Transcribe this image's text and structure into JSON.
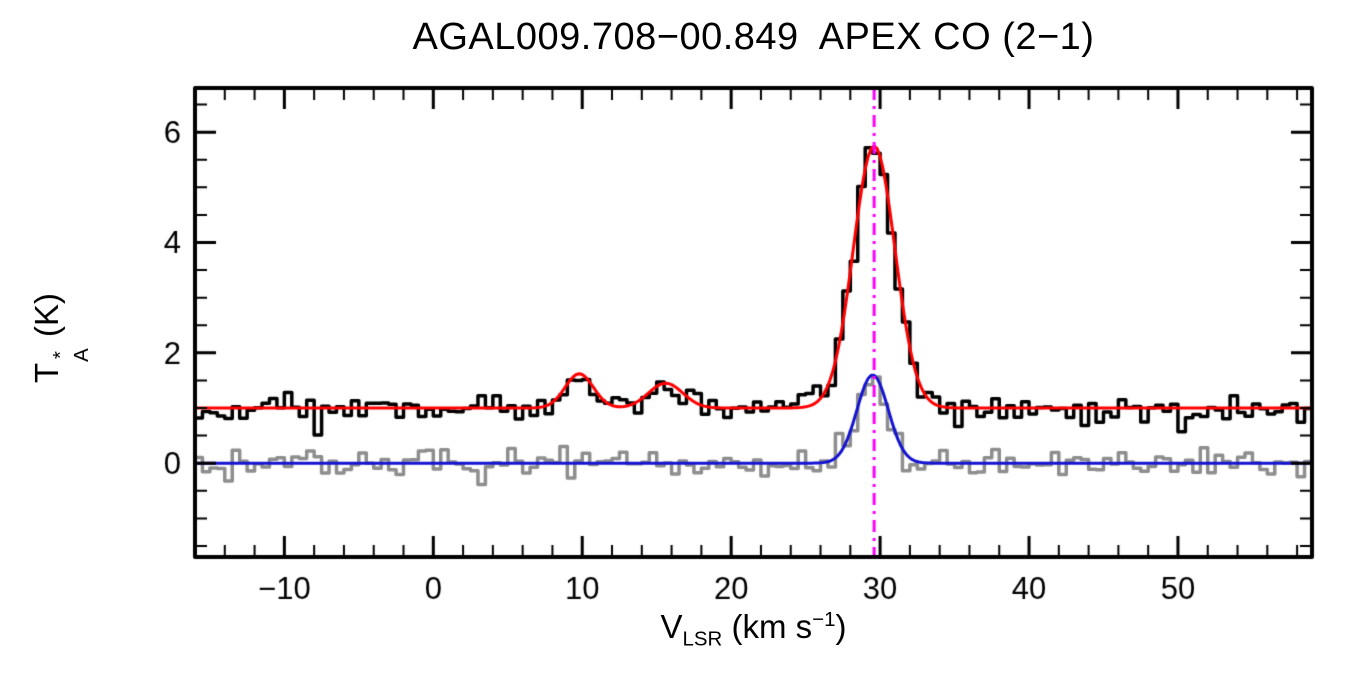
{
  "chart_data": {
    "type": "line",
    "title": "AGAL009.708−00.849  APEX CO (2−1)",
    "xlabel": {
      "symbol": "V",
      "subscript": "LSR",
      "unit_prefix": " (km s",
      "unit_exponent": "−1",
      "unit_suffix": ")"
    },
    "ylabel": {
      "symbol": "T",
      "superscript": "*",
      "subscript": "A",
      "unit": " (K)"
    },
    "xlim": [
      -16,
      59
    ],
    "ylim": [
      -1.7,
      6.8
    ],
    "x_major_ticks": [
      -10,
      0,
      10,
      20,
      30,
      40,
      50
    ],
    "y_major_ticks": [
      0,
      2,
      4,
      6
    ],
    "x_minor_step": 2,
    "y_minor_step": 0.5,
    "channel_width": 0.5,
    "noise_sigma": 0.13,
    "noise_seed": 47,
    "frame_color": "#000000",
    "series": [
      {
        "name": "observed-spectrum",
        "style": "histogram",
        "color": "#8e8e8e",
        "line_width": 3.5,
        "baseline": 0.0,
        "noisy": true,
        "gaussians": [
          {
            "amp": 1.55,
            "center": 29.5,
            "sigma": 1.0
          }
        ]
      },
      {
        "name": "gaussian-fit",
        "style": "curve",
        "color": "#1414d2",
        "line_width": 3,
        "baseline": 0.0,
        "noisy": false,
        "gaussians": [
          {
            "amp": 1.6,
            "center": 29.5,
            "sigma": 1.05
          }
        ]
      },
      {
        "name": "observed-spectrum-offset",
        "style": "histogram",
        "color": "#000000",
        "line_width": 3.5,
        "baseline": 1.0,
        "noisy": true,
        "gaussians": [
          {
            "amp": 4.75,
            "center": 29.6,
            "sigma": 1.4
          },
          {
            "amp": 0.62,
            "center": 9.8,
            "sigma": 0.95
          },
          {
            "amp": 0.45,
            "center": 15.6,
            "sigma": 1.15
          }
        ]
      },
      {
        "name": "gaussian-fit-offset",
        "style": "curve",
        "color": "#ff0000",
        "line_width": 3,
        "baseline": 1.0,
        "noisy": false,
        "gaussians": [
          {
            "amp": 4.75,
            "center": 29.6,
            "sigma": 1.4
          },
          {
            "amp": 0.62,
            "center": 9.8,
            "sigma": 0.95
          },
          {
            "amp": 0.45,
            "center": 15.6,
            "sigma": 1.15
          }
        ]
      }
    ],
    "vline": {
      "x": 29.6,
      "color": "#ff00ff",
      "style": "dash-dot",
      "line_width": 3
    }
  }
}
